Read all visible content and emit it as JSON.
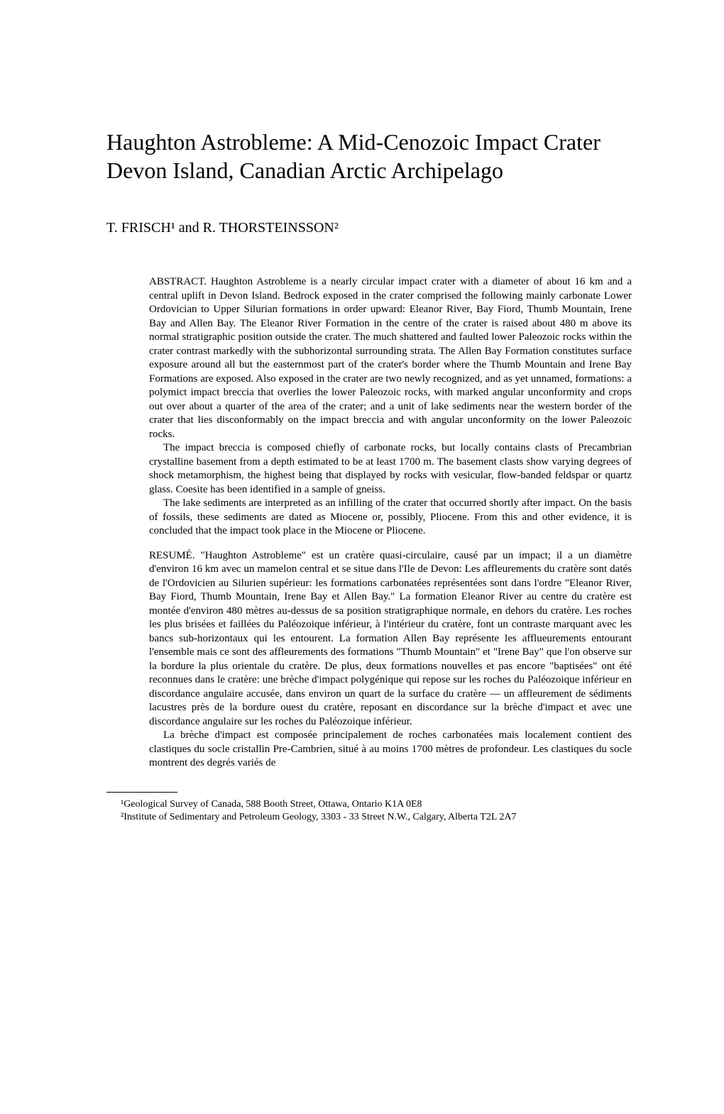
{
  "title": "Haughton Astrobleme: A Mid-Cenozoic Impact Crater Devon Island, Canadian Arctic Archipelago",
  "authors": "T. FRISCH¹ and R. THORSTEINSSON²",
  "abstract": {
    "label": "ABSTRACT.",
    "p1": "Haughton Astrobleme is a nearly circular impact crater with a diameter of about 16 km and a central uplift in Devon Island. Bedrock exposed in the crater comprised the following mainly carbonate Lower Ordovician to Upper Silurian formations in order upward: Eleanor River, Bay Fiord, Thumb Mountain, Irene Bay and Allen Bay. The Eleanor River Formation in the centre of the crater is raised about 480 m above its normal stratigraphic position outside the crater. The much shattered and faulted lower Paleozoic rocks within the crater contrast markedly with the subhorizontal surrounding strata. The Allen Bay Formation constitutes surface exposure around all but the easternmost part of the crater's border where the Thumb Mountain and Irene Bay Formations are exposed. Also exposed in the crater are two newly recognized, and as yet unnamed, formations: a polymict impact breccia that overlies the lower Paleozoic rocks, with marked angular unconformity and crops out over about a quarter of the area of the crater; and a unit of lake sediments near the western border of the crater that lies disconformably on the impact breccia and with angular unconformity on the lower Paleozoic rocks.",
    "p2": "The impact breccia is composed chiefly of carbonate rocks, but locally contains clasts of Precambrian crystalline basement from a depth estimated to be at least 1700 m. The basement clasts show varying degrees of shock metamorphism, the highest being that displayed by rocks with vesicular, flow-banded feldspar or quartz glass. Coesite has been identified in a sample of gneiss.",
    "p3": "The lake sediments are interpreted as an infilling of the crater that occurred shortly after impact. On the basis of fossils, these sediments are dated as Miocene or, possibly, Pliocene. From this and other evidence, it is concluded that the impact took place in the Miocene or Pliocene."
  },
  "resume": {
    "label": "RESUMÉ.",
    "p1": "\"Haughton Astrobleme\" est un cratère quasi-circulaire, causé par un impact; il a un diamètre d'environ 16 km avec un mamelon central et se situe dans l'Ile de Devon: Les affleurements du cratère sont datés de l'Ordovicien au Silurien supérieur: les formations carbonatées représentées sont dans l'ordre \"Eleanor River, Bay Fiord, Thumb Mountain, Irene Bay et Allen Bay.\" La formation Eleanor River au centre du cratère est montée d'environ 480 mètres au-dessus de sa position stratigraphique normale, en dehors du cratère. Les roches les plus brisées et faillées du Paléozoique inférieur, à l'intérieur du cratère, font un contraste marquant avec les bancs sub-horizontaux qui les entourent. La formation Allen Bay représente les afflueurements entourant l'ensemble mais ce sont des affleurements des formations \"Thumb Mountain\" et \"Irene Bay\" que l'on observe sur la bordure la plus orientale du cratère. De plus, deux formations nouvelles et pas encore \"baptisées\" ont été reconnues dans le cratère: une brèche d'impact polygénique qui repose sur les roches du Paléozoique inférieur en discordance angulaire accusée, dans environ un quart de la surface du cratère — un affleurement de sédiments lacustres près de la bordure ouest du cratère, reposant en discordance sur la brèche d'impact et avec une discordance angulaire sur les roches du Paléozoique inférieur.",
    "p2": "La brèche d'impact est composée principalement de roches carbonatées mais localement contient des clastiques du socle cristallin Pre-Cambrien, situé à au moins 1700 mètres de profondeur. Les clastiques du socle montrent des degrés variés de"
  },
  "footnotes": {
    "f1": "¹Geological Survey of Canada, 588 Booth Street, Ottawa, Ontario K1A 0E8",
    "f2": "²Institute of Sedimentary and Petroleum Geology, 3303 - 33 Street N.W., Calgary, Alberta T2L 2A7"
  }
}
